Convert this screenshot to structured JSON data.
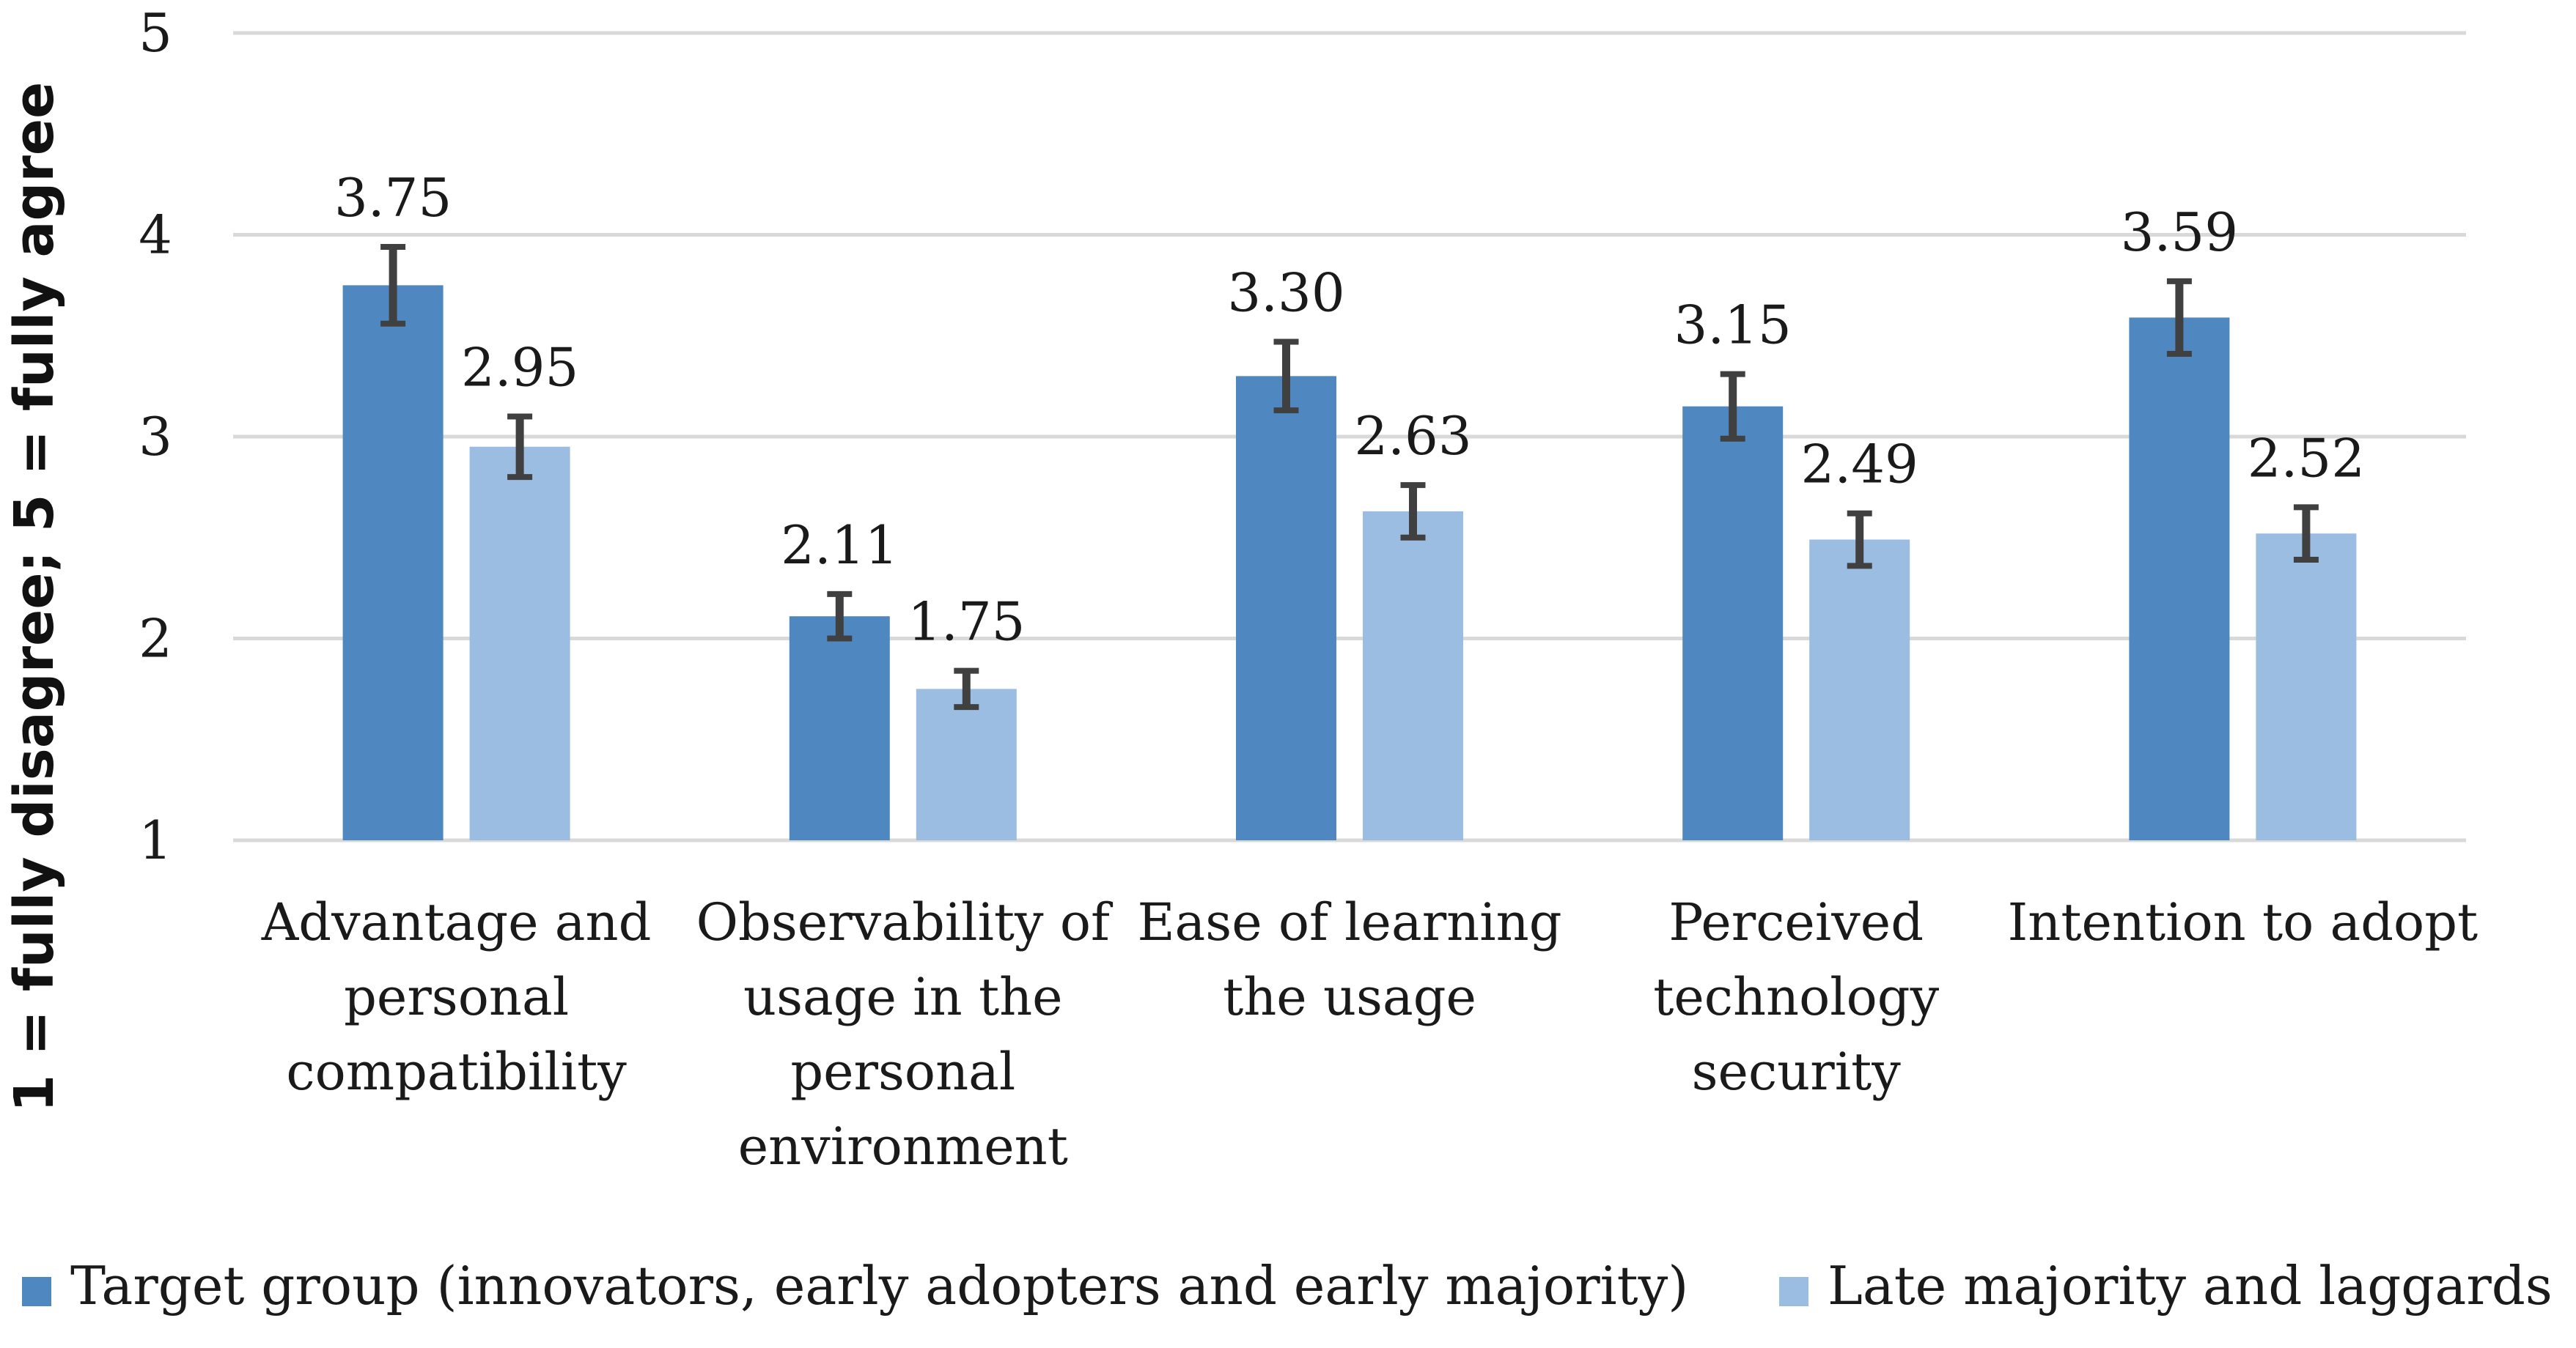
{
  "chart_data": {
    "type": "bar",
    "title": "",
    "xlabel": "",
    "ylabel": "1 = fully disagree; 5 = fully agree",
    "ylim": [
      1,
      5
    ],
    "yticks": [
      1,
      2,
      3,
      4,
      5
    ],
    "grid": true,
    "legend_position": "bottom",
    "categories": [
      [
        "Advantage and",
        "personal",
        "compatibility"
      ],
      [
        "Observability of",
        "usage in the",
        "personal",
        "environment"
      ],
      [
        "Ease of learning",
        "the usage"
      ],
      [
        "Perceived",
        "technology",
        "security"
      ],
      [
        "Intention to adopt"
      ]
    ],
    "series": [
      {
        "name": "Target group (innovators, early adopters and early majority)",
        "color": "#4f88c0",
        "values": [
          3.75,
          2.11,
          3.3,
          3.15,
          3.59
        ],
        "labels": [
          "3.75",
          "2.11",
          "3.30",
          "3.15",
          "3.59"
        ],
        "error": [
          0.19,
          0.11,
          0.17,
          0.16,
          0.18
        ]
      },
      {
        "name": "Late majority and laggards",
        "color": "#9bbde2",
        "values": [
          2.95,
          1.75,
          2.63,
          2.49,
          2.52
        ],
        "labels": [
          "2.95",
          "1.75",
          "2.63",
          "2.49",
          "2.52"
        ],
        "error": [
          0.15,
          0.09,
          0.13,
          0.13,
          0.13
        ]
      }
    ],
    "colors": {
      "grid": "#d9d9d9",
      "error_bar": "#404040"
    }
  }
}
